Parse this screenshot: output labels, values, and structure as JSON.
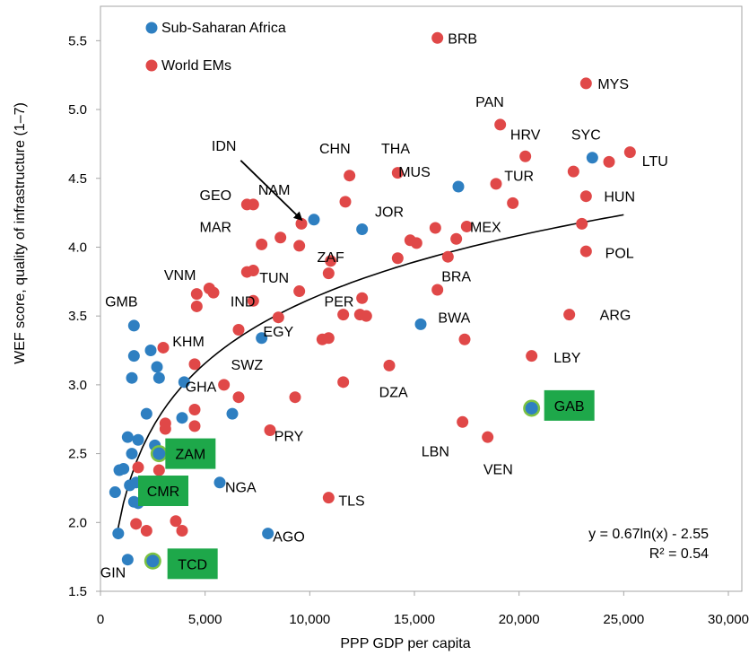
{
  "chart_data": {
    "type": "scatter",
    "xlabel": "PPP GDP per  capita",
    "ylabel": "WEF score, quality of infrastructure (1–7)",
    "xlim": [
      0,
      30000
    ],
    "ylim": [
      1.5,
      5.75
    ],
    "x_ticks": [
      "0",
      "5,000",
      "10,000",
      "15,000",
      "20,000",
      "25,000",
      "30,000"
    ],
    "y_ticks": [
      "1.5",
      "2.0",
      "2.5",
      "3.0",
      "3.5",
      "4.0",
      "4.5",
      "5.0",
      "5.5"
    ],
    "grid": false,
    "legend_position": "top-left",
    "series": [
      {
        "name": "Sub-Saharan Africa",
        "color": "#2e7fc1",
        "points": [
          [
            850,
            1.92
          ],
          [
            1300,
            1.73
          ],
          [
            2500,
            1.72
          ],
          [
            700,
            2.22
          ],
          [
            1400,
            2.27
          ],
          [
            1600,
            2.15
          ],
          [
            1800,
            2.14
          ],
          [
            1700,
            2.29
          ],
          [
            2000,
            2.28
          ],
          [
            900,
            2.38
          ],
          [
            1100,
            2.39
          ],
          [
            1500,
            2.5
          ],
          [
            1300,
            2.62
          ],
          [
            1800,
            2.6
          ],
          [
            2600,
            2.56
          ],
          [
            2800,
            2.5
          ],
          [
            2200,
            2.79
          ],
          [
            3900,
            2.76
          ],
          [
            1500,
            3.05
          ],
          [
            1600,
            3.21
          ],
          [
            2700,
            3.13
          ],
          [
            2800,
            3.05
          ],
          [
            4000,
            3.02
          ],
          [
            2400,
            3.25
          ],
          [
            1600,
            3.43
          ],
          [
            6300,
            2.79
          ],
          [
            5700,
            2.29
          ],
          [
            8000,
            1.92
          ],
          [
            7700,
            3.34
          ],
          [
            10200,
            4.2
          ],
          [
            12500,
            4.13
          ],
          [
            15300,
            3.44
          ],
          [
            17100,
            4.44
          ],
          [
            23500,
            4.65
          ]
        ]
      },
      {
        "name": "World EMs",
        "color": "#e04848",
        "points": [
          [
            16100,
            5.52
          ],
          [
            23200,
            5.19
          ],
          [
            19100,
            4.89
          ],
          [
            20300,
            4.66
          ],
          [
            25300,
            4.69
          ],
          [
            24300,
            4.62
          ],
          [
            22600,
            4.55
          ],
          [
            23200,
            4.37
          ],
          [
            14200,
            4.54
          ],
          [
            11900,
            4.52
          ],
          [
            18900,
            4.46
          ],
          [
            19700,
            4.32
          ],
          [
            11700,
            4.33
          ],
          [
            7000,
            4.31
          ],
          [
            7300,
            4.31
          ],
          [
            9600,
            4.17
          ],
          [
            8600,
            4.07
          ],
          [
            7700,
            4.02
          ],
          [
            9500,
            4.01
          ],
          [
            16000,
            4.14
          ],
          [
            17500,
            4.15
          ],
          [
            23000,
            4.17
          ],
          [
            14800,
            4.05
          ],
          [
            15100,
            4.03
          ],
          [
            17000,
            4.06
          ],
          [
            14200,
            3.92
          ],
          [
            16600,
            3.93
          ],
          [
            11000,
            3.9
          ],
          [
            10900,
            3.81
          ],
          [
            7000,
            3.82
          ],
          [
            7300,
            3.83
          ],
          [
            23200,
            3.97
          ],
          [
            5200,
            3.7
          ],
          [
            5400,
            3.67
          ],
          [
            4600,
            3.66
          ],
          [
            4600,
            3.57
          ],
          [
            9500,
            3.68
          ],
          [
            16100,
            3.69
          ],
          [
            12500,
            3.63
          ],
          [
            7300,
            3.61
          ],
          [
            12400,
            3.51
          ],
          [
            12700,
            3.5
          ],
          [
            11600,
            3.51
          ],
          [
            10600,
            3.33
          ],
          [
            10900,
            3.34
          ],
          [
            6600,
            3.4
          ],
          [
            8500,
            3.49
          ],
          [
            22400,
            3.51
          ],
          [
            3000,
            3.27
          ],
          [
            17400,
            3.33
          ],
          [
            20600,
            3.21
          ],
          [
            4500,
            3.15
          ],
          [
            13800,
            3.14
          ],
          [
            5900,
            3.0
          ],
          [
            6600,
            2.91
          ],
          [
            9300,
            2.91
          ],
          [
            11600,
            3.02
          ],
          [
            4500,
            2.82
          ],
          [
            4500,
            2.7
          ],
          [
            3100,
            2.72
          ],
          [
            3100,
            2.68
          ],
          [
            8100,
            2.67
          ],
          [
            17300,
            2.73
          ],
          [
            18500,
            2.62
          ],
          [
            1800,
            2.4
          ],
          [
            2800,
            2.38
          ],
          [
            1700,
            1.99
          ],
          [
            2200,
            1.94
          ],
          [
            3600,
            2.01
          ],
          [
            3900,
            1.94
          ],
          [
            10900,
            2.18
          ]
        ]
      }
    ],
    "highlighted_points": [
      {
        "label": "GAB",
        "x": 20600,
        "y": 2.83,
        "color": "#2e7fc1"
      },
      {
        "label": "TCD",
        "x": 2500,
        "y": 1.72,
        "color": "#2e7fc1"
      },
      {
        "label": "ZAM",
        "x": 2800,
        "y": 2.5,
        "color": "#2e7fc1"
      }
    ],
    "trendline": {
      "type": "log",
      "a": 0.67,
      "b": -2.55,
      "x_range": [
        800,
        25000
      ]
    },
    "equation": "y = 0.67ln(x) - 2.55",
    "r_squared": "R² = 0.54",
    "country_labels": [
      {
        "text": "BRB",
        "x": 17300,
        "y": 5.52
      },
      {
        "text": "MYS",
        "x": 24500,
        "y": 5.19
      },
      {
        "text": "PAN",
        "x": 18600,
        "y": 5.06
      },
      {
        "text": "HRV",
        "x": 20300,
        "y": 4.82
      },
      {
        "text": "SYC",
        "x": 23200,
        "y": 4.82
      },
      {
        "text": "LTU",
        "x": 26500,
        "y": 4.63
      },
      {
        "text": "THA",
        "x": 14100,
        "y": 4.72
      },
      {
        "text": "CHN",
        "x": 11200,
        "y": 4.72
      },
      {
        "text": "IDN",
        "x": 5900,
        "y": 4.74
      },
      {
        "text": "MUS",
        "x": 15000,
        "y": 4.55
      },
      {
        "text": "TUR",
        "x": 20000,
        "y": 4.52
      },
      {
        "text": "HUN",
        "x": 24800,
        "y": 4.37
      },
      {
        "text": "NAM",
        "x": 8300,
        "y": 4.42
      },
      {
        "text": "GEO",
        "x": 5500,
        "y": 4.38
      },
      {
        "text": "JOR",
        "x": 13800,
        "y": 4.26
      },
      {
        "text": "MAR",
        "x": 5500,
        "y": 4.15
      },
      {
        "text": "MEX",
        "x": 18400,
        "y": 4.15
      },
      {
        "text": "ZAF",
        "x": 11000,
        "y": 3.93
      },
      {
        "text": "POL",
        "x": 24800,
        "y": 3.96
      },
      {
        "text": "BRA",
        "x": 17000,
        "y": 3.79
      },
      {
        "text": "VNM",
        "x": 3800,
        "y": 3.8
      },
      {
        "text": "TUN",
        "x": 8300,
        "y": 3.78
      },
      {
        "text": "PER",
        "x": 11400,
        "y": 3.61
      },
      {
        "text": "IND",
        "x": 6800,
        "y": 3.61
      },
      {
        "text": "GMB",
        "x": 1000,
        "y": 3.61
      },
      {
        "text": "ARG",
        "x": 24600,
        "y": 3.51
      },
      {
        "text": "BWA",
        "x": 16900,
        "y": 3.49
      },
      {
        "text": "EGY",
        "x": 8500,
        "y": 3.39
      },
      {
        "text": "KHM",
        "x": 4200,
        "y": 3.32
      },
      {
        "text": "LBY",
        "x": 22300,
        "y": 3.2
      },
      {
        "text": "SWZ",
        "x": 7000,
        "y": 3.15
      },
      {
        "text": "GHA",
        "x": 4800,
        "y": 2.99
      },
      {
        "text": "DZA",
        "x": 14000,
        "y": 2.95
      },
      {
        "text": "PRY",
        "x": 9000,
        "y": 2.63
      },
      {
        "text": "LBN",
        "x": 16000,
        "y": 2.52
      },
      {
        "text": "VEN",
        "x": 19000,
        "y": 2.39
      },
      {
        "text": "NGA",
        "x": 6700,
        "y": 2.26
      },
      {
        "text": "TLS",
        "x": 12000,
        "y": 2.16
      },
      {
        "text": "AGO",
        "x": 9000,
        "y": 1.9
      },
      {
        "text": "GIN",
        "x": 600,
        "y": 1.64
      }
    ],
    "boxed_labels": [
      {
        "text": "GAB",
        "x": 22400,
        "y": 2.85
      },
      {
        "text": "CMR",
        "x": 3000,
        "y": 2.23
      },
      {
        "text": "TCD",
        "x": 4400,
        "y": 1.7
      },
      {
        "text": "ZAM",
        "x": 4300,
        "y": 2.5
      }
    ],
    "annotation_arrow": {
      "label": "IDN",
      "from": [
        6700,
        4.63
      ],
      "to": [
        9600,
        4.2
      ]
    }
  }
}
